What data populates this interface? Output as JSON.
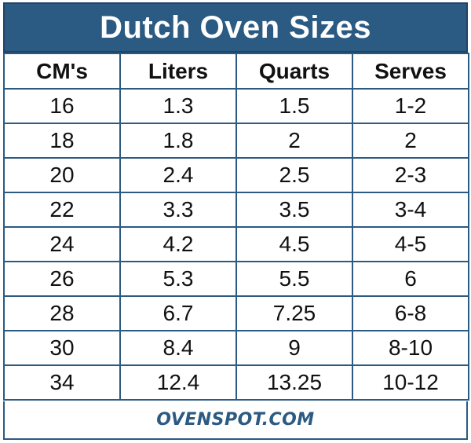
{
  "title": "Dutch Oven Sizes",
  "headers": [
    "CM's",
    "Liters",
    "Quarts",
    "Serves"
  ],
  "rows": [
    [
      "16",
      "1.3",
      "1.5",
      "1-2"
    ],
    [
      "18",
      "1.8",
      "2",
      "2"
    ],
    [
      "20",
      "2.4",
      "2.5",
      "2-3"
    ],
    [
      "22",
      "3.3",
      "3.5",
      "3-4"
    ],
    [
      "24",
      "4.2",
      "4.5",
      "4-5"
    ],
    [
      "26",
      "5.3",
      "5.5",
      "6"
    ],
    [
      "28",
      "6.7",
      "7.25",
      "6-8"
    ],
    [
      "30",
      "8.4",
      "9",
      "8-10"
    ],
    [
      "34",
      "12.4",
      "13.25",
      "10-12"
    ]
  ],
  "footer": "OVENSPOT.COM",
  "colors": {
    "header_bg": "#2b5a82",
    "border": "#2b5a82",
    "logo": "#2b5a82"
  }
}
